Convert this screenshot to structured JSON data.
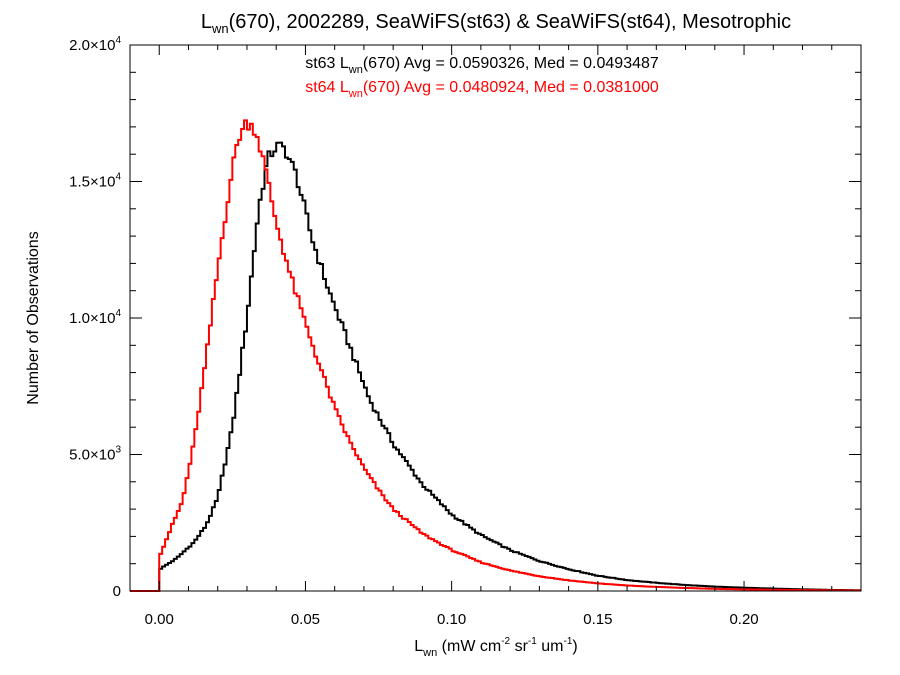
{
  "chart_data": {
    "type": "histogram",
    "title": {
      "pre": "L",
      "sub": "wn",
      "post": "(670), 2002289, SeaWiFS(st63) & SeaWiFS(st64), Mesotrophic"
    },
    "xlabel": {
      "parts": [
        {
          "t": "L"
        },
        {
          "t": "wn",
          "s": "sub"
        },
        {
          "t": " (mW cm"
        },
        {
          "t": "-2",
          "s": "sup"
        },
        {
          "t": " sr"
        },
        {
          "t": "-1",
          "s": "sup"
        },
        {
          "t": " um"
        },
        {
          "t": "-1",
          "s": "sup"
        },
        {
          "t": ")"
        }
      ]
    },
    "ylabel": "Number of Observations",
    "xlim": [
      -0.01,
      0.24
    ],
    "ylim": [
      0,
      20000
    ],
    "xticks": [
      {
        "v": 0.0,
        "label": "0.00"
      },
      {
        "v": 0.05,
        "label": "0.05"
      },
      {
        "v": 0.1,
        "label": "0.10"
      },
      {
        "v": 0.15,
        "label": "0.15"
      },
      {
        "v": 0.2,
        "label": "0.20"
      }
    ],
    "yticks": [
      {
        "v": 0,
        "mant": "0",
        "exp": ""
      },
      {
        "v": 5000,
        "mant": "5.0×10",
        "exp": "3"
      },
      {
        "v": 10000,
        "mant": "1.0×10",
        "exp": "4"
      },
      {
        "v": 15000,
        "mant": "1.5×10",
        "exp": "4"
      },
      {
        "v": 20000,
        "mant": "2.0×10",
        "exp": "4"
      }
    ],
    "grid": false,
    "series": [
      {
        "name": "st63",
        "color": "#000000",
        "legend": {
          "pre": "st63 L",
          "sub": "wn",
          "post": "(670) Avg = 0.0590326, Med = 0.0493487"
        },
        "knots": [
          [
            0.0,
            0
          ],
          [
            0.0002,
            800
          ],
          [
            0.006,
            1200
          ],
          [
            0.012,
            1800
          ],
          [
            0.016,
            2400
          ],
          [
            0.02,
            3400
          ],
          [
            0.025,
            6000
          ],
          [
            0.03,
            10000
          ],
          [
            0.034,
            14000
          ],
          [
            0.037,
            15800
          ],
          [
            0.04,
            16300
          ],
          [
            0.043,
            16200
          ],
          [
            0.047,
            15200
          ],
          [
            0.052,
            13000
          ],
          [
            0.058,
            11000
          ],
          [
            0.065,
            9000
          ],
          [
            0.072,
            7000
          ],
          [
            0.08,
            5400
          ],
          [
            0.09,
            3900
          ],
          [
            0.1,
            2800
          ],
          [
            0.11,
            2050
          ],
          [
            0.12,
            1500
          ],
          [
            0.13,
            1100
          ],
          [
            0.14,
            800
          ],
          [
            0.15,
            560
          ],
          [
            0.16,
            400
          ],
          [
            0.17,
            300
          ],
          [
            0.18,
            220
          ],
          [
            0.19,
            160
          ],
          [
            0.2,
            120
          ],
          [
            0.21,
            90
          ],
          [
            0.22,
            60
          ],
          [
            0.23,
            40
          ],
          [
            0.24,
            25
          ]
        ]
      },
      {
        "name": "st64",
        "color": "#ff0000",
        "legend": {
          "pre": "st64 L",
          "sub": "wn",
          "post": "(670) Avg = 0.0480924, Med = 0.0381000"
        },
        "knots": [
          [
            0.0,
            0
          ],
          [
            0.0002,
            1300
          ],
          [
            0.004,
            2300
          ],
          [
            0.008,
            3300
          ],
          [
            0.012,
            5500
          ],
          [
            0.016,
            8500
          ],
          [
            0.02,
            11800
          ],
          [
            0.024,
            14800
          ],
          [
            0.027,
            16600
          ],
          [
            0.03,
            17200
          ],
          [
            0.033,
            16900
          ],
          [
            0.036,
            15600
          ],
          [
            0.04,
            13500
          ],
          [
            0.045,
            11500
          ],
          [
            0.05,
            9800
          ],
          [
            0.055,
            8200
          ],
          [
            0.06,
            6700
          ],
          [
            0.065,
            5500
          ],
          [
            0.07,
            4500
          ],
          [
            0.075,
            3700
          ],
          [
            0.08,
            3000
          ],
          [
            0.09,
            2100
          ],
          [
            0.1,
            1500
          ],
          [
            0.11,
            1050
          ],
          [
            0.12,
            750
          ],
          [
            0.13,
            540
          ],
          [
            0.14,
            390
          ],
          [
            0.15,
            280
          ],
          [
            0.16,
            200
          ],
          [
            0.17,
            150
          ],
          [
            0.18,
            110
          ],
          [
            0.19,
            80
          ],
          [
            0.2,
            60
          ],
          [
            0.21,
            45
          ],
          [
            0.22,
            35
          ],
          [
            0.23,
            25
          ],
          [
            0.24,
            18
          ]
        ]
      }
    ]
  }
}
